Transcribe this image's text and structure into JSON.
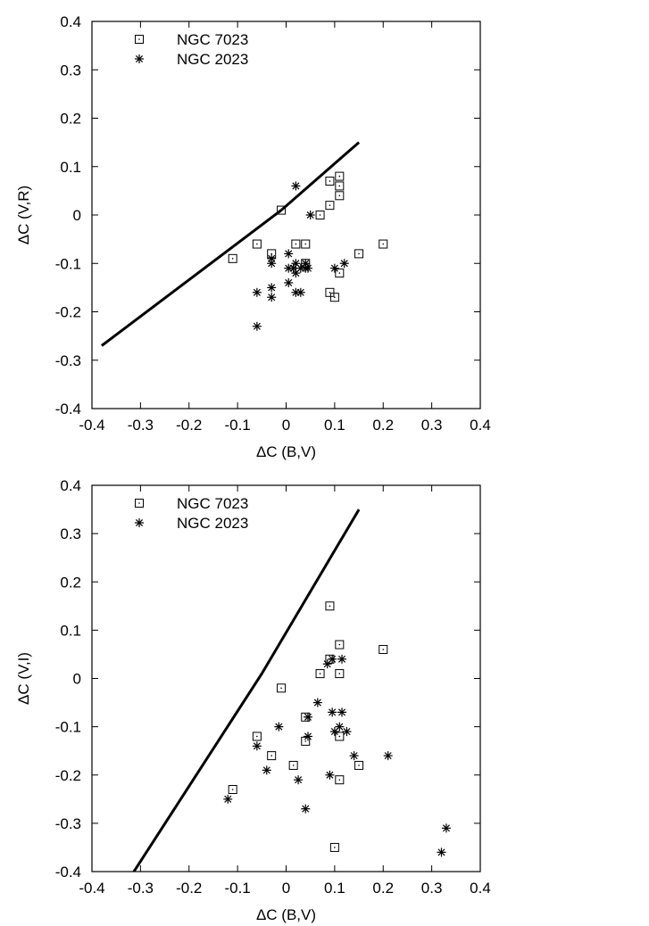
{
  "chart_data": [
    {
      "type": "scatter",
      "xlabel": "ΔC (B,V)",
      "ylabel": "ΔC (V,R)",
      "xlim": [
        -0.4,
        0.4
      ],
      "ylim": [
        -0.4,
        0.4
      ],
      "xticks": [
        "-0.4",
        "-0.3",
        "-0.2",
        "-0.1",
        "0",
        "0.1",
        "0.2",
        "0.3",
        "0.4"
      ],
      "yticks": [
        "-0.4",
        "-0.3",
        "-0.2",
        "-0.1",
        "0",
        "0.1",
        "0.2",
        "0.3",
        "0.4"
      ],
      "legend_position": "top-left",
      "grid": false,
      "series": [
        {
          "name": "NGC 7023",
          "marker": "square",
          "points": [
            [
              -0.11,
              -0.09
            ],
            [
              -0.06,
              -0.06
            ],
            [
              -0.03,
              -0.08
            ],
            [
              -0.01,
              0.01
            ],
            [
              0.02,
              -0.06
            ],
            [
              0.04,
              -0.06
            ],
            [
              0.04,
              -0.1
            ],
            [
              0.07,
              0.0
            ],
            [
              0.09,
              0.07
            ],
            [
              0.09,
              0.02
            ],
            [
              0.09,
              -0.16
            ],
            [
              0.1,
              -0.17
            ],
            [
              0.11,
              0.08
            ],
            [
              0.11,
              0.06
            ],
            [
              0.11,
              0.04
            ],
            [
              0.11,
              -0.12
            ],
            [
              0.15,
              -0.08
            ],
            [
              0.2,
              -0.06
            ]
          ]
        },
        {
          "name": "NGC 2023",
          "marker": "star",
          "points": [
            [
              -0.06,
              -0.16
            ],
            [
              -0.06,
              -0.23
            ],
            [
              -0.03,
              -0.09
            ],
            [
              -0.03,
              -0.1
            ],
            [
              -0.03,
              -0.15
            ],
            [
              -0.03,
              -0.17
            ],
            [
              0.005,
              -0.08
            ],
            [
              0.005,
              -0.11
            ],
            [
              0.005,
              -0.14
            ],
            [
              0.015,
              -0.11
            ],
            [
              0.02,
              0.06
            ],
            [
              0.02,
              -0.1
            ],
            [
              0.02,
              -0.12
            ],
            [
              0.02,
              -0.16
            ],
            [
              0.03,
              -0.16
            ],
            [
              0.03,
              -0.11
            ],
            [
              0.04,
              -0.1
            ],
            [
              0.04,
              -0.11
            ],
            [
              0.045,
              -0.11
            ],
            [
              0.05,
              0.0
            ],
            [
              0.1,
              -0.11
            ],
            [
              0.12,
              -0.1
            ]
          ]
        }
      ],
      "curve": [
        [
          -0.38,
          -0.27
        ],
        [
          -0.01,
          0.01
        ],
        [
          0.15,
          0.15
        ]
      ]
    },
    {
      "type": "scatter",
      "xlabel": "ΔC (B,V)",
      "ylabel": "ΔC (V,I)",
      "xlim": [
        -0.4,
        0.4
      ],
      "ylim": [
        -0.4,
        0.4
      ],
      "xticks": [
        "-0.4",
        "-0.3",
        "-0.2",
        "-0.1",
        "0",
        "0.1",
        "0.2",
        "0.3",
        "0.4"
      ],
      "yticks": [
        "-0.4",
        "-0.3",
        "-0.2",
        "-0.1",
        "0",
        "0.1",
        "0.2",
        "0.3",
        "0.4"
      ],
      "legend_position": "top-left",
      "grid": false,
      "series": [
        {
          "name": "NGC 7023",
          "marker": "square",
          "points": [
            [
              -0.11,
              -0.23
            ],
            [
              -0.06,
              -0.12
            ],
            [
              -0.03,
              -0.16
            ],
            [
              -0.01,
              -0.02
            ],
            [
              0.015,
              -0.18
            ],
            [
              0.04,
              -0.08
            ],
            [
              0.04,
              -0.13
            ],
            [
              0.07,
              0.01
            ],
            [
              0.09,
              0.15
            ],
            [
              0.09,
              0.04
            ],
            [
              0.1,
              -0.35
            ],
            [
              0.11,
              0.07
            ],
            [
              0.11,
              0.01
            ],
            [
              0.11,
              -0.12
            ],
            [
              0.11,
              -0.21
            ],
            [
              0.15,
              -0.18
            ],
            [
              0.2,
              0.06
            ]
          ]
        },
        {
          "name": "NGC 2023",
          "marker": "star",
          "points": [
            [
              -0.12,
              -0.25
            ],
            [
              -0.06,
              -0.14
            ],
            [
              -0.04,
              -0.19
            ],
            [
              -0.015,
              -0.1
            ],
            [
              0.025,
              -0.21
            ],
            [
              0.04,
              -0.27
            ],
            [
              0.045,
              -0.08
            ],
            [
              0.045,
              -0.12
            ],
            [
              0.065,
              -0.05
            ],
            [
              0.085,
              0.03
            ],
            [
              0.09,
              -0.2
            ],
            [
              0.095,
              0.04
            ],
            [
              0.095,
              -0.07
            ],
            [
              0.1,
              -0.11
            ],
            [
              0.11,
              -0.1
            ],
            [
              0.115,
              0.04
            ],
            [
              0.115,
              -0.07
            ],
            [
              0.125,
              -0.11
            ],
            [
              0.14,
              -0.16
            ],
            [
              0.21,
              -0.16
            ],
            [
              0.32,
              -0.36
            ],
            [
              0.33,
              -0.31
            ]
          ]
        }
      ],
      "curve": [
        [
          -0.32,
          -0.41
        ],
        [
          -0.05,
          0.01
        ],
        [
          0.15,
          0.35
        ]
      ]
    }
  ]
}
